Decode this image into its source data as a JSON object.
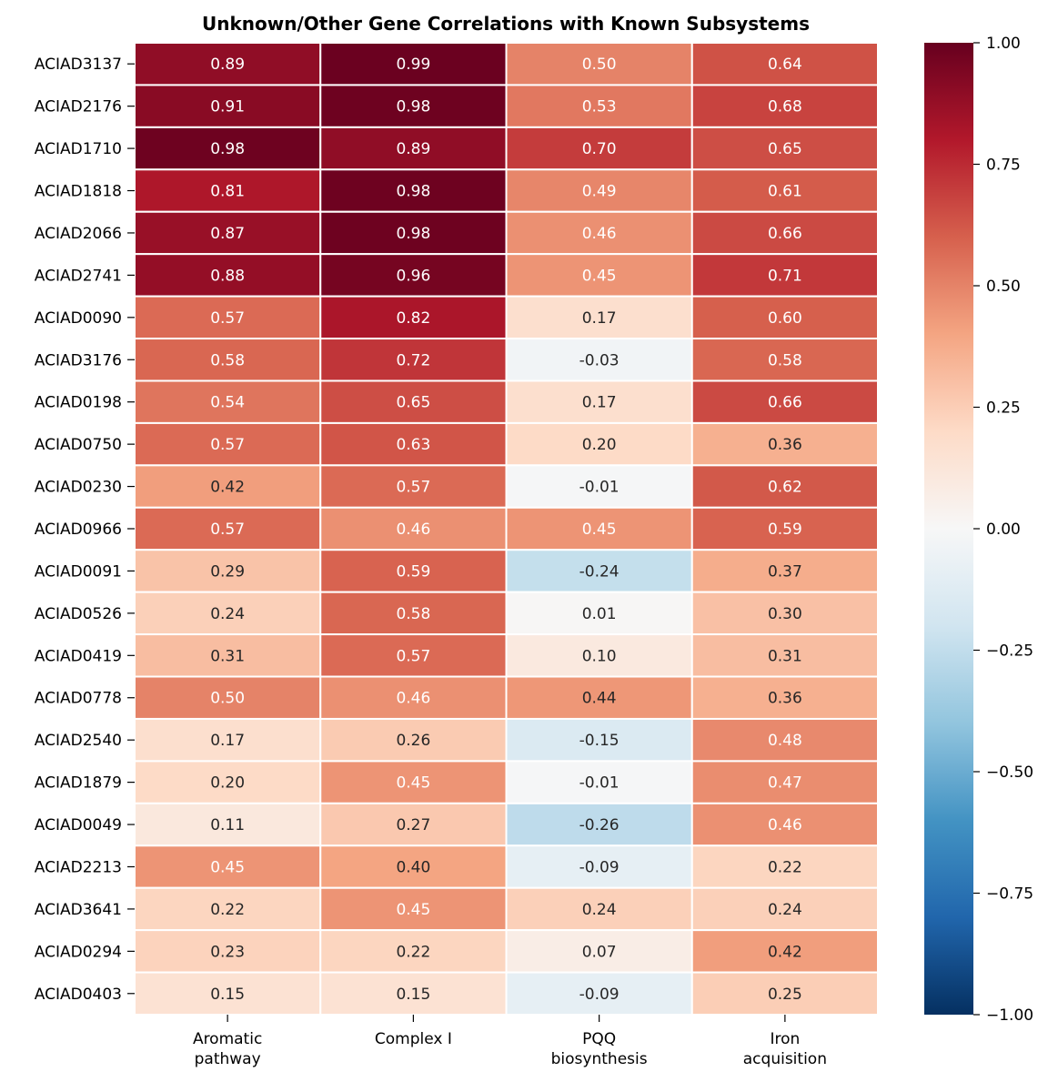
{
  "chart_data": {
    "type": "heatmap",
    "title": "Unknown/Other Gene Correlations with Known Subsystems",
    "columns": [
      "Aromatic\npathway",
      "Complex I",
      "PQQ\nbiosynthesis",
      "Iron\nacquisition"
    ],
    "rows": [
      "ACIAD3137",
      "ACIAD2176",
      "ACIAD1710",
      "ACIAD1818",
      "ACIAD2066",
      "ACIAD2741",
      "ACIAD0090",
      "ACIAD3176",
      "ACIAD0198",
      "ACIAD0750",
      "ACIAD0230",
      "ACIAD0966",
      "ACIAD0091",
      "ACIAD0526",
      "ACIAD0419",
      "ACIAD0778",
      "ACIAD2540",
      "ACIAD1879",
      "ACIAD0049",
      "ACIAD2213",
      "ACIAD3641",
      "ACIAD0294",
      "ACIAD0403"
    ],
    "values": [
      [
        0.89,
        0.99,
        0.5,
        0.64
      ],
      [
        0.91,
        0.98,
        0.53,
        0.68
      ],
      [
        0.98,
        0.89,
        0.7,
        0.65
      ],
      [
        0.81,
        0.98,
        0.49,
        0.61
      ],
      [
        0.87,
        0.98,
        0.46,
        0.66
      ],
      [
        0.88,
        0.96,
        0.45,
        0.71
      ],
      [
        0.57,
        0.82,
        0.17,
        0.6
      ],
      [
        0.58,
        0.72,
        -0.03,
        0.58
      ],
      [
        0.54,
        0.65,
        0.17,
        0.66
      ],
      [
        0.57,
        0.63,
        0.2,
        0.36
      ],
      [
        0.42,
        0.57,
        -0.01,
        0.62
      ],
      [
        0.57,
        0.46,
        0.45,
        0.59
      ],
      [
        0.29,
        0.59,
        -0.24,
        0.37
      ],
      [
        0.24,
        0.58,
        0.01,
        0.3
      ],
      [
        0.31,
        0.57,
        0.1,
        0.31
      ],
      [
        0.5,
        0.46,
        0.44,
        0.36
      ],
      [
        0.17,
        0.26,
        -0.15,
        0.48
      ],
      [
        0.2,
        0.45,
        -0.01,
        0.47
      ],
      [
        0.11,
        0.27,
        -0.26,
        0.46
      ],
      [
        0.45,
        0.4,
        -0.09,
        0.22
      ],
      [
        0.22,
        0.45,
        0.24,
        0.24
      ],
      [
        0.23,
        0.22,
        0.07,
        0.42
      ],
      [
        0.15,
        0.15,
        -0.09,
        0.25
      ]
    ],
    "colormap": "RdBu_r",
    "vmin": -1.0,
    "vmax": 1.0,
    "colorbar_ticks": [
      "1.00",
      "0.75",
      "0.50",
      "0.25",
      "0.00",
      "−0.25",
      "−0.50",
      "−0.75",
      "−1.00"
    ],
    "colorbar_tick_values": [
      1,
      0.75,
      0.5,
      0.25,
      0,
      -0.25,
      -0.5,
      -0.75,
      -1
    ],
    "annotated": true
  }
}
